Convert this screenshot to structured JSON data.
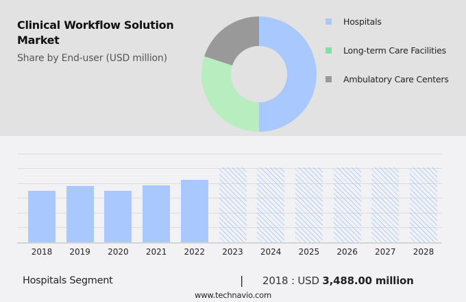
{
  "header": {
    "title": "Clinical Workflow Solution Market",
    "subtitle": "Share by End-user (USD million)"
  },
  "legend": [
    {
      "label": "Hospitals",
      "color": "#a8c8fe"
    },
    {
      "label": "Long-term Care Facilities",
      "color": "#7ee3a0"
    },
    {
      "label": "Ambulatory Care Centers",
      "color": "#999999"
    }
  ],
  "footer": {
    "segment": "Hospitals Segment",
    "separator": "|",
    "year_prefix": "2018 : USD ",
    "value": "3,488.00 million",
    "site": "www.technavio.com"
  },
  "chart_data": [
    {
      "type": "pie",
      "subtype": "donut",
      "title": "Share by End-user (USD million)",
      "categories": [
        "Hospitals",
        "Long-term Care Facilities",
        "Ambulatory Care Centers"
      ],
      "values": [
        50,
        30,
        20
      ],
      "colors": [
        "#a8c8fe",
        "#b8edc0",
        "#999999"
      ]
    },
    {
      "type": "bar",
      "title": "Hospitals Segment",
      "categories": [
        "2018",
        "2019",
        "2020",
        "2021",
        "2022",
        "2023",
        "2024",
        "2025",
        "2026",
        "2027",
        "2028"
      ],
      "values": [
        3488,
        3813,
        3488,
        3860,
        4232,
        null,
        null,
        null,
        null,
        null,
        null
      ],
      "forecast": [
        false,
        false,
        false,
        false,
        false,
        true,
        true,
        true,
        true,
        true,
        true
      ],
      "annotation": "2018 : USD 3,488.00 million",
      "grid": true,
      "ylabel": "",
      "xlabel": ""
    }
  ]
}
